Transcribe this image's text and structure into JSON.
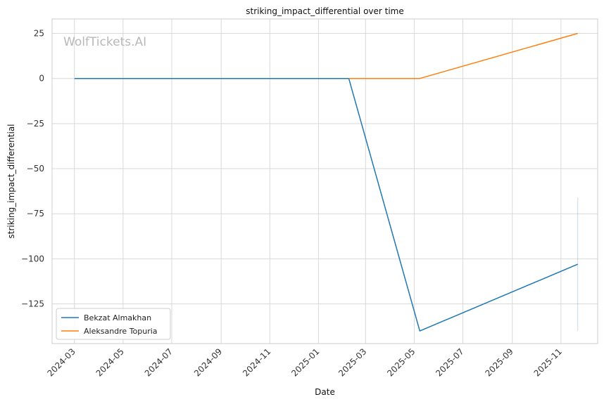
{
  "watermark": "WolfTickets.AI",
  "chart_data": {
    "type": "line",
    "title": "striking_impact_differential over time",
    "xlabel": "Date",
    "ylabel": "striking_impact_differential",
    "x_tick_labels": [
      "2024-03",
      "2024-05",
      "2024-07",
      "2024-09",
      "2024-11",
      "2025-01",
      "2025-03",
      "2025-05",
      "2025-07",
      "2025-09",
      "2025-11"
    ],
    "y_ticks": [
      25,
      0,
      -25,
      -50,
      -75,
      -100,
      -125
    ],
    "y_tick_labels": [
      "25",
      "0",
      "−25",
      "−50",
      "−75",
      "−100",
      "−125"
    ],
    "xlim": [
      "2024-02-02",
      "2025-12-17"
    ],
    "ylim": [
      -147,
      33
    ],
    "grid": true,
    "legend_position": "lower-left",
    "series": [
      {
        "name": "Bekzat Almakhan",
        "color": "#1f77b4",
        "x": [
          "2024-03-01",
          "2025-02-08",
          "2025-05-08",
          "2025-11-22"
        ],
        "y": [
          0,
          0,
          -140,
          -103
        ]
      },
      {
        "name": "Aleksandre Topuria",
        "color": "#ff7f0e",
        "x": [
          "2025-02-08",
          "2025-05-08",
          "2025-11-22"
        ],
        "y": [
          0,
          0,
          25
        ]
      }
    ],
    "error_band": {
      "x": "2025-11-22",
      "low": -140,
      "high": -66,
      "color": "#1f77b4"
    }
  }
}
